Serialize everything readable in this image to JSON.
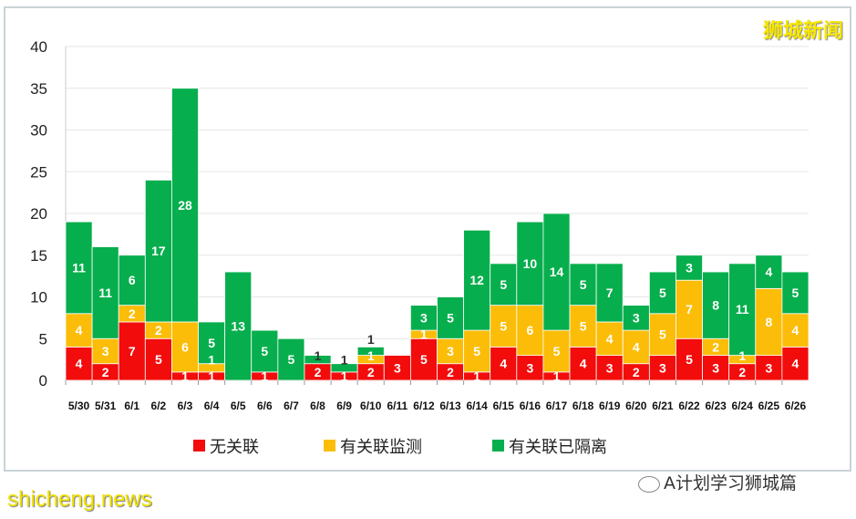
{
  "chart_data": {
    "type": "bar",
    "stacked": true,
    "categories": [
      "5/30",
      "5/31",
      "6/1",
      "6/2",
      "6/3",
      "6/4",
      "6/5",
      "6/6",
      "6/7",
      "6/8",
      "6/9",
      "6/10",
      "6/11",
      "6/12",
      "6/13",
      "6/14",
      "6/15",
      "6/16",
      "6/17",
      "6/18",
      "6/19",
      "6/20",
      "6/21",
      "6/22",
      "6/23",
      "6/24",
      "6/25",
      "6/26"
    ],
    "series": [
      {
        "name": "无关联",
        "color": "#f20c0c",
        "values": [
          4,
          2,
          7,
          5,
          1,
          1,
          0,
          1,
          0,
          2,
          1,
          2,
          3,
          5,
          2,
          1,
          4,
          3,
          1,
          4,
          3,
          2,
          3,
          5,
          3,
          2,
          3,
          4
        ]
      },
      {
        "name": "有关联监测",
        "color": "#fbbd08",
        "values": [
          4,
          3,
          2,
          2,
          6,
          1,
          0,
          0,
          0,
          0,
          0,
          1,
          0,
          1,
          3,
          5,
          5,
          6,
          5,
          5,
          4,
          4,
          5,
          7,
          2,
          1,
          8,
          4
        ]
      },
      {
        "name": "有关联已隔离",
        "color": "#07ae4d",
        "values": [
          11,
          11,
          6,
          17,
          28,
          5,
          13,
          5,
          5,
          1,
          1,
          1,
          0,
          3,
          5,
          12,
          5,
          10,
          14,
          5,
          7,
          3,
          5,
          3,
          8,
          11,
          4,
          5
        ]
      }
    ],
    "ylim": [
      0,
      40
    ],
    "yticks": [
      0,
      5,
      10,
      15,
      20,
      25,
      30,
      35,
      40
    ],
    "grid": true,
    "legend": "bottom",
    "data_labels": true
  },
  "watermarks": {
    "top_right": "狮城新闻",
    "bottom_left": "shicheng.news",
    "bottom_right": "A计划学习狮城篇"
  }
}
